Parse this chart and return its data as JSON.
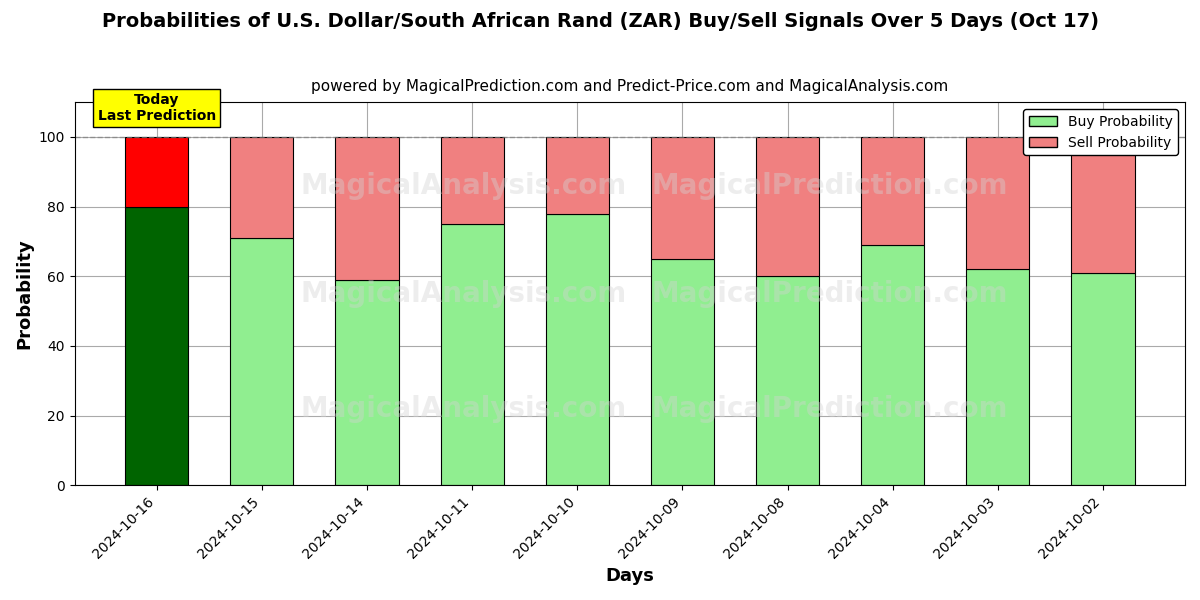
{
  "title": "Probabilities of U.S. Dollar/South African Rand (ZAR) Buy/Sell Signals Over 5 Days (Oct 17)",
  "subtitle": "powered by MagicalPrediction.com and Predict-Price.com and MagicalAnalysis.com",
  "xlabel": "Days",
  "ylabel": "Probability",
  "categories": [
    "2024-10-16",
    "2024-10-15",
    "2024-10-14",
    "2024-10-11",
    "2024-10-10",
    "2024-10-09",
    "2024-10-08",
    "2024-10-04",
    "2024-10-03",
    "2024-10-02"
  ],
  "buy_values": [
    80,
    71,
    59,
    75,
    78,
    65,
    60,
    69,
    62,
    61
  ],
  "sell_values": [
    20,
    29,
    41,
    25,
    22,
    35,
    40,
    31,
    38,
    39
  ],
  "today_buy_color": "#006400",
  "today_sell_color": "#FF0000",
  "buy_color": "#90EE90",
  "sell_color": "#F08080",
  "bar_edgecolor": "#000000",
  "today_label_bg": "#FFFF00",
  "today_label_text": "Today\nLast Prediction",
  "ylim": [
    0,
    110
  ],
  "yticks": [
    0,
    20,
    40,
    60,
    80,
    100
  ],
  "legend_buy_label": "Buy Probability",
  "legend_sell_label": "Sell Probability",
  "watermark_texts": [
    "MagicalAnalysis.com",
    "MagicalPrediction.com"
  ],
  "grid_color": "#aaaaaa",
  "background_color": "#ffffff",
  "title_fontsize": 14,
  "subtitle_fontsize": 11,
  "axis_label_fontsize": 13
}
